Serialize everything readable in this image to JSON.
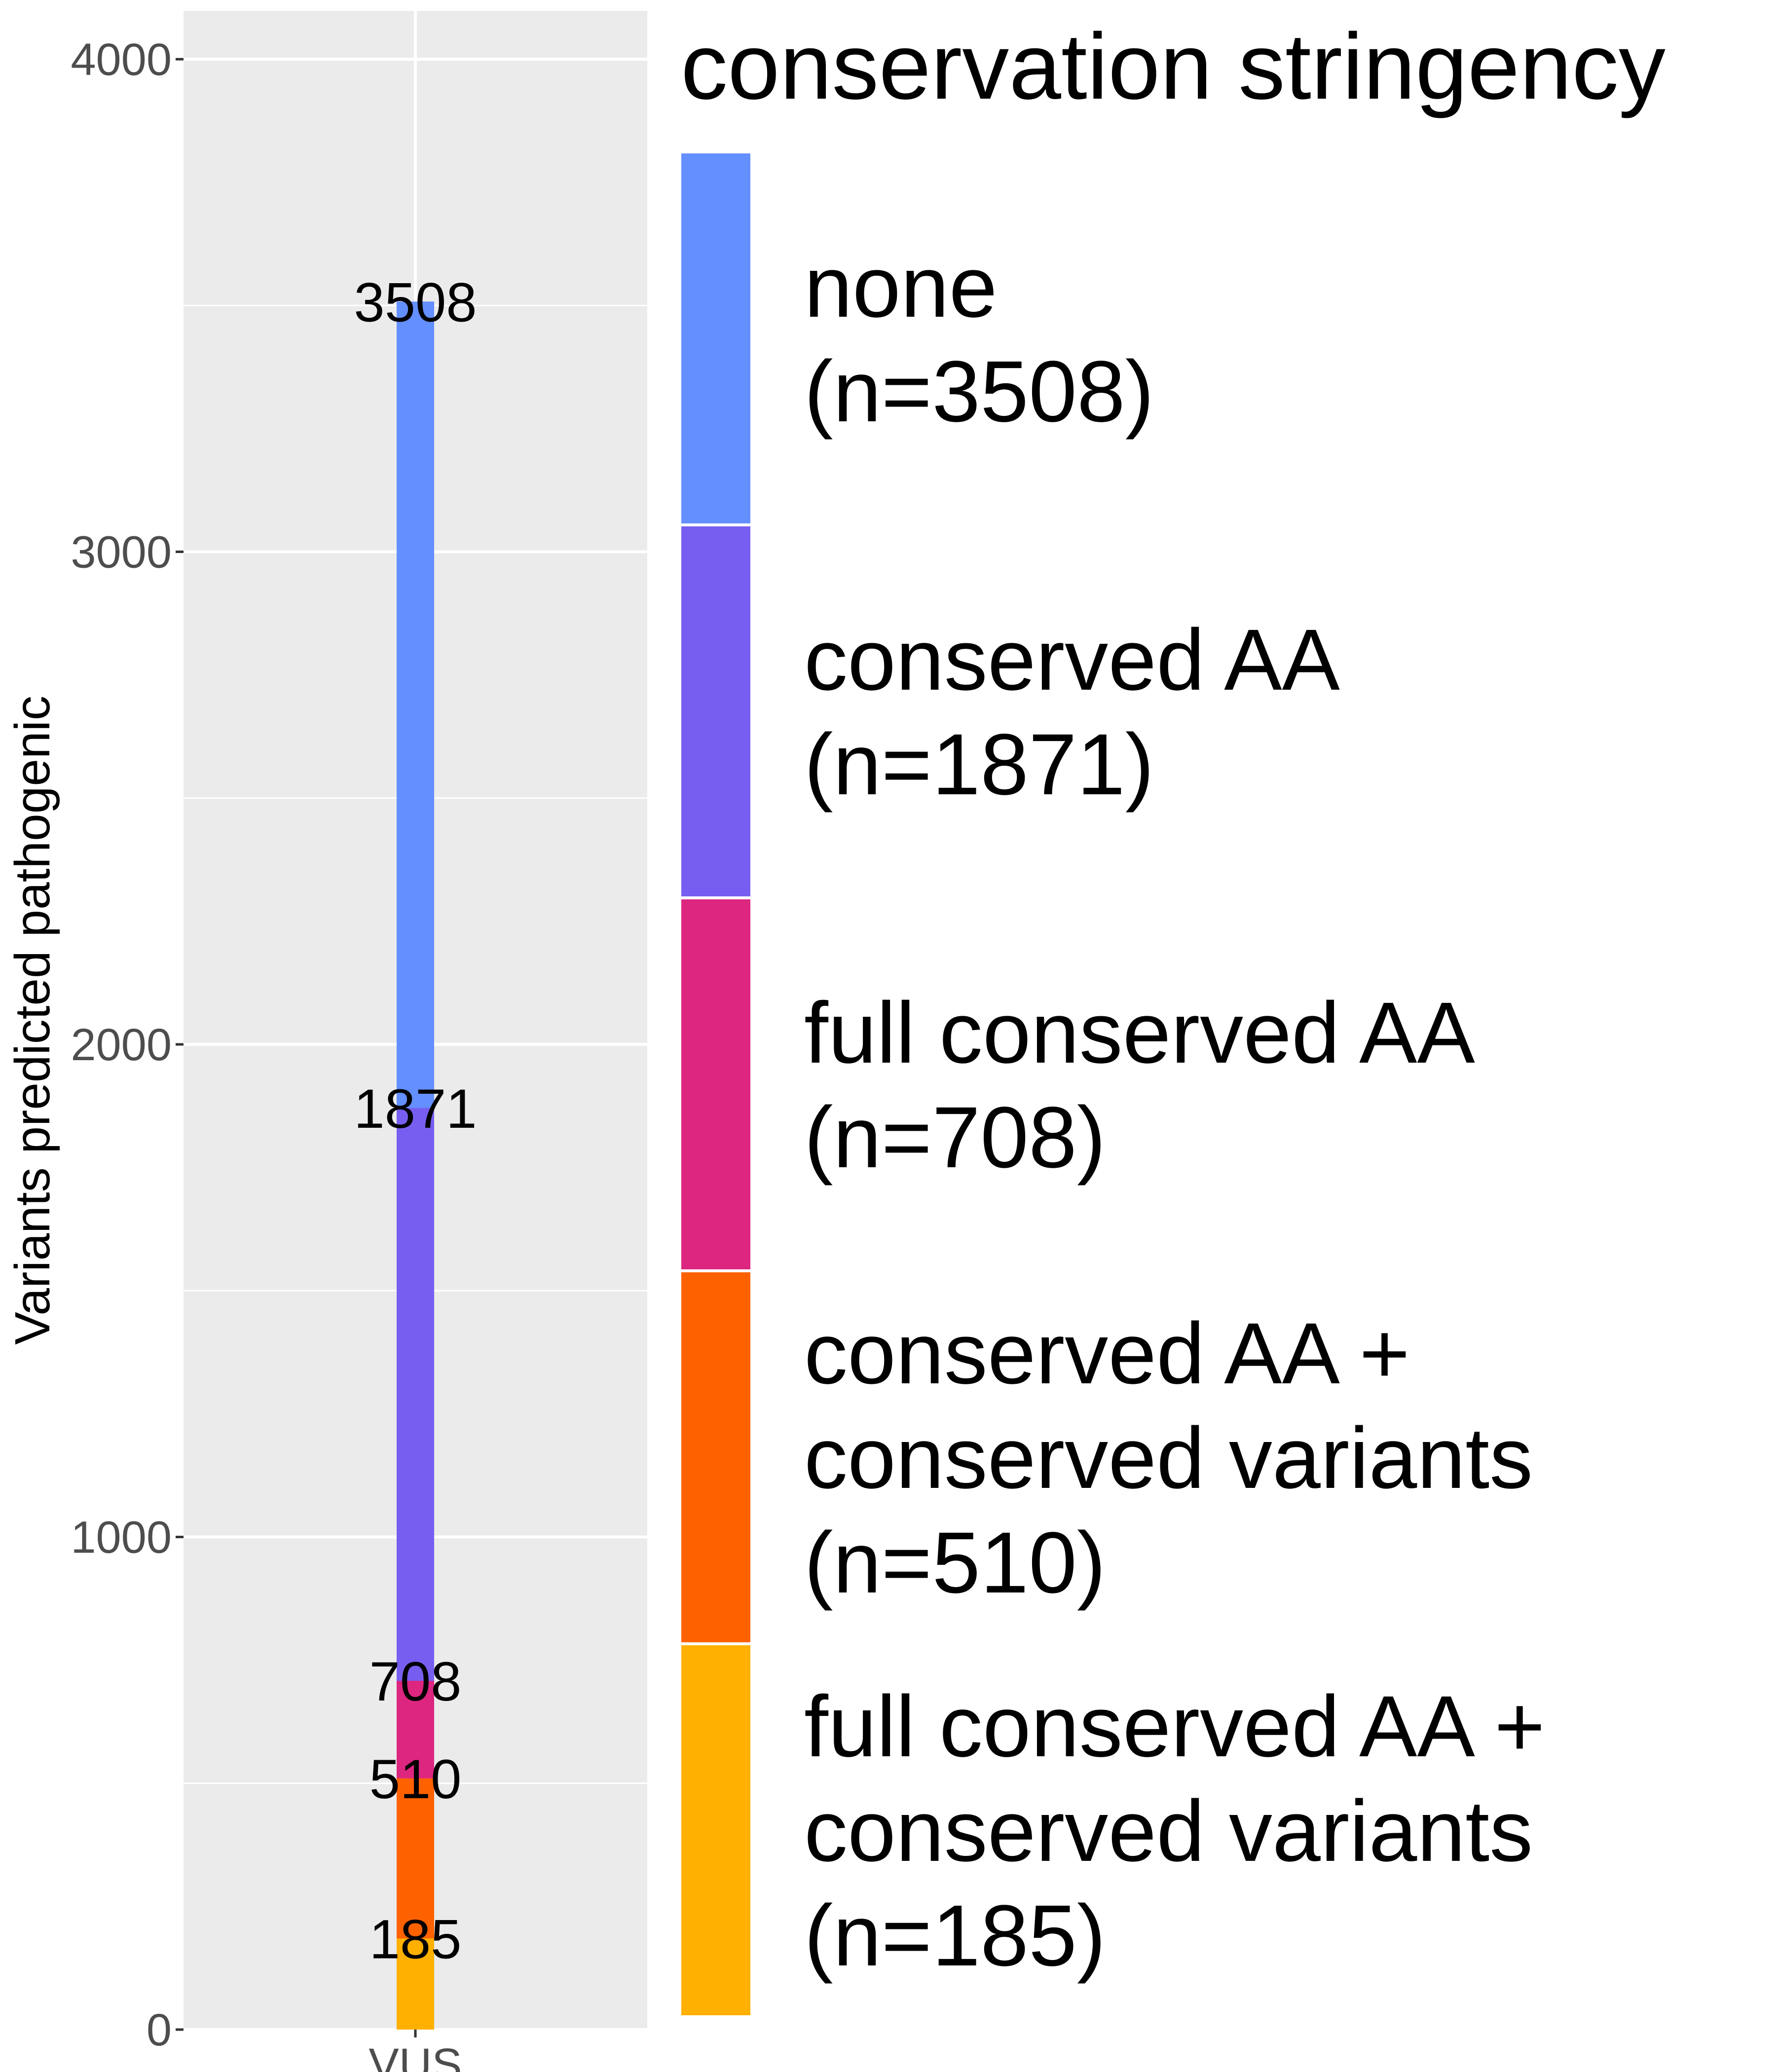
{
  "chart_data": {
    "type": "bar",
    "stacked": false,
    "overlaid": true,
    "categories": [
      "VUS"
    ],
    "xlabel": "",
    "ylabel": "Variants predicted pathogenic",
    "ylim": [
      0,
      4100
    ],
    "yticks": [
      0,
      1000,
      2000,
      3000,
      4000
    ],
    "grid": true,
    "legend_position": "right",
    "legend_title": "conservation stringency",
    "series": [
      {
        "name": "none",
        "legend_lines": [
          "none",
          "(n=3508)"
        ],
        "values": [
          3508
        ],
        "label": "3508",
        "color": "#648FFF"
      },
      {
        "name": "conserved AA",
        "legend_lines": [
          "conserved AA",
          "(n=1871)"
        ],
        "values": [
          1871
        ],
        "label": "1871",
        "color": "#785EF0"
      },
      {
        "name": "full conserved AA",
        "legend_lines": [
          "full conserved AA",
          "(n=708)"
        ],
        "values": [
          708
        ],
        "label": "708",
        "color": "#DC267F"
      },
      {
        "name": "conserved AA + conserved variants",
        "legend_lines": [
          "conserved AA +",
          "conserved variants",
          "(n=510)"
        ],
        "values": [
          510
        ],
        "label": "510",
        "color": "#FE6100"
      },
      {
        "name": "full conserved AA + conserved variants",
        "legend_lines": [
          "full conserved AA +",
          "conserved variants",
          "(n=185)"
        ],
        "values": [
          185
        ],
        "label": "185",
        "color": "#FFB000"
      }
    ]
  }
}
